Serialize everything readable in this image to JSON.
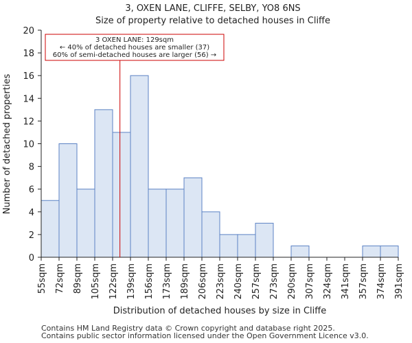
{
  "chart_data": {
    "type": "histogram",
    "title": "3, OXEN LANE, CLIFFE, SELBY, YO8 6NS",
    "subtitle": "Size of property relative to detached houses in Cliffe",
    "xlabel": "Distribution of detached houses by size in Cliffe",
    "ylabel": "Number of detached properties",
    "ylim": [
      0,
      20
    ],
    "yticks": [
      0,
      2,
      4,
      6,
      8,
      10,
      12,
      14,
      16,
      18,
      20
    ],
    "categories": [
      "55sqm",
      "72sqm",
      "89sqm",
      "105sqm",
      "122sqm",
      "139sqm",
      "156sqm",
      "173sqm",
      "189sqm",
      "206sqm",
      "223sqm",
      "240sqm",
      "257sqm",
      "273sqm",
      "290sqm",
      "307sqm",
      "324sqm",
      "341sqm",
      "357sqm",
      "374sqm",
      "391sqm"
    ],
    "values": [
      5,
      10,
      6,
      13,
      11,
      16,
      6,
      6,
      7,
      4,
      2,
      2,
      3,
      0,
      1,
      0,
      0,
      0,
      1,
      1
    ],
    "marker": {
      "value_sqm": 129,
      "bin_position": 4.41
    },
    "annotation": [
      "3 OXEN LANE: 129sqm",
      "← 40% of detached houses are smaller (37)",
      "60% of semi-detached houses are larger (56) →"
    ],
    "colors": {
      "bar_fill": "#dce6f4",
      "bar_edge": "#5b82c4",
      "marker": "#cc0000",
      "axis": "#222222"
    }
  },
  "footer": {
    "line1": "Contains HM Land Registry data © Crown copyright and database right 2025.",
    "line2": "Contains public sector information licensed under the Open Government Licence v3.0."
  }
}
